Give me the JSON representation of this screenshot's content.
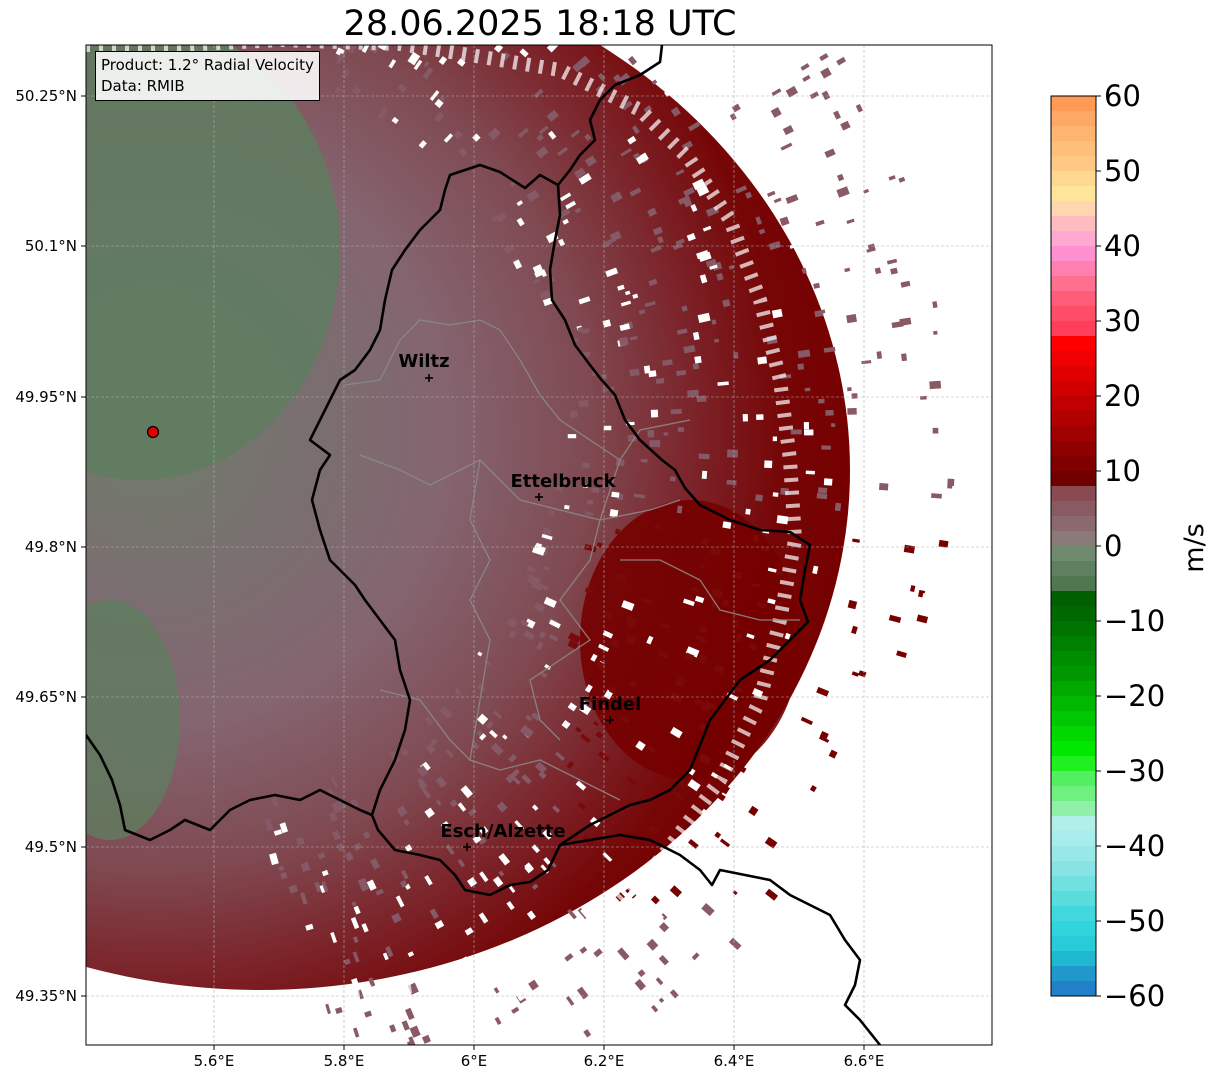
{
  "title": "28.06.2025 18:18 UTC",
  "info": {
    "product": "Product: 1.2° Radial Velocity",
    "data": "Data: RMIB"
  },
  "map": {
    "lat_ticks": [
      "50.25°N",
      "50.1°N",
      "49.95°N",
      "49.8°N",
      "49.65°N",
      "49.5°N",
      "49.35°N"
    ],
    "lon_ticks": [
      "5.6°E",
      "5.8°E",
      "6°E",
      "6.2°E",
      "6.4°E",
      "6.6°E"
    ],
    "cities": [
      {
        "name": "Wiltz",
        "lat": 49.966,
        "lon": 5.932
      },
      {
        "name": "Ettelbruck",
        "lat": 49.847,
        "lon": 6.104
      },
      {
        "name": "Findel",
        "lat": 49.627,
        "lon": 6.211
      },
      {
        "name": "Esch/Alzette",
        "lat": 49.496,
        "lon": 5.981
      }
    ],
    "radar_site": {
      "lat": 49.914,
      "lon": 5.505
    },
    "colors": {
      "approaching_green": "#5e7d5e",
      "receding_mauve": "#8a5f68",
      "strong_receding": "#7a0000",
      "border": "#000000",
      "cantons": "#888888",
      "radar_marker": "#e00000"
    }
  },
  "colorbar": {
    "unit": "m/s",
    "ticks": [
      "60",
      "50",
      "40",
      "30",
      "20",
      "10",
      "0",
      "−10",
      "−20",
      "−30",
      "−40",
      "−50",
      "−60"
    ]
  }
}
